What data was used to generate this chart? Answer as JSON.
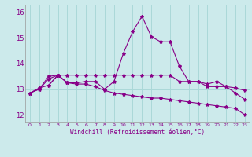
{
  "title": "",
  "xlabel": "Windchill (Refroidissement éolien,°C)",
  "background_color": "#cceaeb",
  "grid_color": "#aad8d8",
  "line_color": "#880088",
  "xlim": [
    -0.5,
    23.5
  ],
  "ylim": [
    11.7,
    16.3
  ],
  "xticks": [
    0,
    1,
    2,
    3,
    4,
    5,
    6,
    7,
    8,
    9,
    10,
    11,
    12,
    13,
    14,
    15,
    16,
    17,
    18,
    19,
    20,
    21,
    22,
    23
  ],
  "yticks": [
    12,
    13,
    14,
    15
  ],
  "ytick_extra": 16,
  "series1_x": [
    0,
    1,
    2,
    3,
    4,
    5,
    6,
    7,
    8,
    9,
    10,
    11,
    12,
    13,
    14,
    15,
    16,
    17,
    18,
    19,
    20,
    21,
    22,
    23
  ],
  "series1_y": [
    12.85,
    13.0,
    13.4,
    13.55,
    13.25,
    13.25,
    13.3,
    13.3,
    13.0,
    13.3,
    14.4,
    15.25,
    15.85,
    15.05,
    14.85,
    14.85,
    13.9,
    13.3,
    13.3,
    13.1,
    13.1,
    13.1,
    12.85,
    12.6
  ],
  "series2_x": [
    0,
    1,
    2,
    3,
    4,
    5,
    6,
    7,
    8,
    9,
    10,
    11,
    12,
    13,
    14,
    15,
    16,
    17,
    18,
    19,
    20,
    21,
    22,
    23
  ],
  "series2_y": [
    12.85,
    13.0,
    13.5,
    13.55,
    13.55,
    13.55,
    13.55,
    13.55,
    13.55,
    13.55,
    13.55,
    13.55,
    13.55,
    13.55,
    13.55,
    13.55,
    13.3,
    13.3,
    13.3,
    13.2,
    13.3,
    13.1,
    13.05,
    12.95
  ],
  "series3_x": [
    0,
    1,
    2,
    3,
    4,
    5,
    6,
    7,
    8,
    9,
    10,
    11,
    12,
    13,
    14,
    15,
    16,
    17,
    18,
    19,
    20,
    21,
    22,
    23
  ],
  "series3_y": [
    12.85,
    13.05,
    13.15,
    13.55,
    13.25,
    13.2,
    13.2,
    13.1,
    12.95,
    12.85,
    12.8,
    12.75,
    12.7,
    12.65,
    12.65,
    12.6,
    12.55,
    12.5,
    12.45,
    12.4,
    12.35,
    12.3,
    12.25,
    12.0
  ],
  "series4_x": [
    2,
    3,
    4
  ],
  "series4_y": [
    13.15,
    13.55,
    13.25
  ]
}
